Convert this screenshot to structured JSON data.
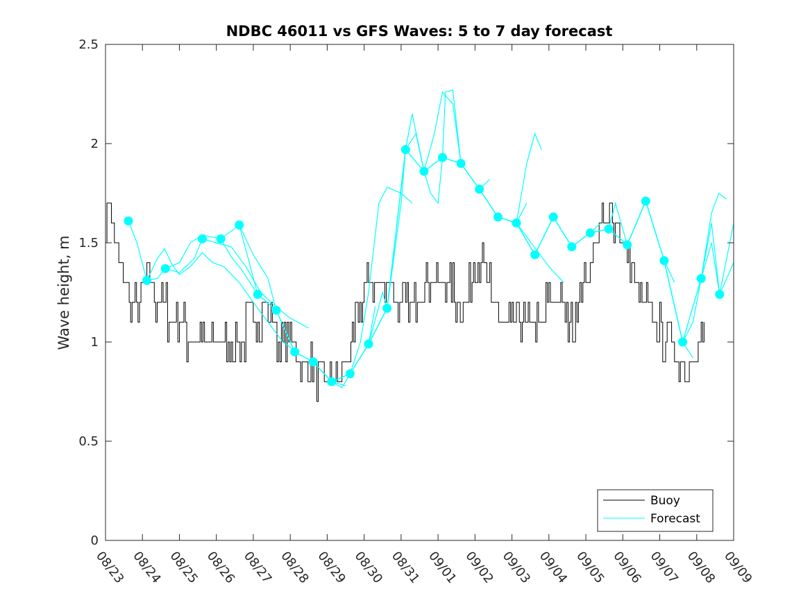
{
  "chart_data": {
    "type": "line",
    "title": "NDBC 46011 vs GFS Waves: 5 to 7 day forecast",
    "xlabel": "",
    "ylabel": "Wave height, m",
    "xlim": [
      0,
      17
    ],
    "ylim": [
      0,
      2.5
    ],
    "x_ticks": [
      "08/23",
      "08/24",
      "08/25",
      "08/26",
      "08/27",
      "08/28",
      "08/29",
      "08/30",
      "08/31",
      "09/01",
      "09/02",
      "09/03",
      "09/04",
      "09/05",
      "09/06",
      "09/07",
      "09/08",
      "09/09"
    ],
    "y_ticks": [
      "0",
      "0.5",
      "1",
      "1.5",
      "2",
      "2.5"
    ],
    "legend": {
      "position": "bottom-right",
      "entries": [
        "Buoy",
        "Forecast"
      ]
    },
    "colors": {
      "buoy": "#000000",
      "forecast": "#00FFFF",
      "axis": "#262626"
    },
    "buoy": [
      [
        0.0,
        1.6
      ],
      [
        0.1,
        1.7
      ],
      [
        0.25,
        1.5
      ],
      [
        0.4,
        1.4
      ],
      [
        0.55,
        1.3
      ],
      [
        0.7,
        1.2
      ],
      [
        0.85,
        1.2
      ],
      [
        1.0,
        1.25
      ],
      [
        1.15,
        1.3
      ],
      [
        1.3,
        1.25
      ],
      [
        1.5,
        1.2
      ],
      [
        1.65,
        1.15
      ],
      [
        1.8,
        1.1
      ],
      [
        2.0,
        1.05
      ],
      [
        2.2,
        1.05
      ],
      [
        2.4,
        1.0
      ],
      [
        2.6,
        0.98
      ],
      [
        2.8,
        0.96
      ],
      [
        3.0,
        0.96
      ],
      [
        3.2,
        0.96
      ],
      [
        3.4,
        0.97
      ],
      [
        3.6,
        1.0
      ],
      [
        3.8,
        1.05
      ],
      [
        4.0,
        1.1
      ],
      [
        4.2,
        1.15
      ],
      [
        4.4,
        1.15
      ],
      [
        4.6,
        1.05
      ],
      [
        4.8,
        1.0
      ],
      [
        5.0,
        0.98
      ],
      [
        5.2,
        0.94
      ],
      [
        5.4,
        0.92
      ],
      [
        5.6,
        0.86
      ],
      [
        5.8,
        0.83
      ],
      [
        6.0,
        0.82
      ],
      [
        6.2,
        0.83
      ],
      [
        6.4,
        0.85
      ],
      [
        6.6,
        0.9
      ],
      [
        6.7,
        1.0
      ],
      [
        6.8,
        1.1
      ],
      [
        6.9,
        1.2
      ],
      [
        7.0,
        1.28
      ],
      [
        7.2,
        1.3
      ],
      [
        7.4,
        1.32
      ],
      [
        7.6,
        1.3
      ],
      [
        7.8,
        1.25
      ],
      [
        8.0,
        1.2
      ],
      [
        8.2,
        1.22
      ],
      [
        8.4,
        1.25
      ],
      [
        8.6,
        1.3
      ],
      [
        8.8,
        1.32
      ],
      [
        9.0,
        1.3
      ],
      [
        9.2,
        1.28
      ],
      [
        9.4,
        1.25
      ],
      [
        9.6,
        1.22
      ],
      [
        9.8,
        1.25
      ],
      [
        10.0,
        1.4
      ],
      [
        10.2,
        1.45
      ],
      [
        10.3,
        1.35
      ],
      [
        10.4,
        1.25
      ],
      [
        10.6,
        1.15
      ],
      [
        10.8,
        1.1
      ],
      [
        11.0,
        1.12
      ],
      [
        11.2,
        1.15
      ],
      [
        11.4,
        1.12
      ],
      [
        11.6,
        1.1
      ],
      [
        11.8,
        1.12
      ],
      [
        12.0,
        1.18
      ],
      [
        12.2,
        1.2
      ],
      [
        12.4,
        1.15
      ],
      [
        12.6,
        1.1
      ],
      [
        12.8,
        1.2
      ],
      [
        13.0,
        1.35
      ],
      [
        13.2,
        1.5
      ],
      [
        13.4,
        1.6
      ],
      [
        13.6,
        1.65
      ],
      [
        13.7,
        1.72
      ],
      [
        13.8,
        1.6
      ],
      [
        14.0,
        1.5
      ],
      [
        14.2,
        1.4
      ],
      [
        14.4,
        1.28
      ],
      [
        14.6,
        1.2
      ],
      [
        14.8,
        1.12
      ],
      [
        15.0,
        1.05
      ],
      [
        15.2,
        1.0
      ],
      [
        15.4,
        0.95
      ],
      [
        15.6,
        0.93
      ],
      [
        15.8,
        0.94
      ],
      [
        16.0,
        0.95
      ],
      [
        16.2,
        0.95
      ]
    ],
    "forecast_runs": [
      [
        [
          0.62,
          1.61
        ],
        [
          0.85,
          1.5
        ],
        [
          1.12,
          1.31
        ],
        [
          1.4,
          1.32
        ],
        [
          1.62,
          1.37
        ],
        [
          2.0,
          1.35
        ],
        [
          2.4,
          1.42
        ],
        [
          2.62,
          1.52
        ],
        [
          3.0,
          1.5
        ],
        [
          3.4,
          1.48
        ],
        [
          3.8,
          1.38
        ],
        [
          4.2,
          1.25
        ],
        [
          4.6,
          1.18
        ],
        [
          5.0,
          1.12
        ],
        [
          5.5,
          1.07
        ]
      ],
      [
        [
          1.12,
          1.31
        ],
        [
          1.4,
          1.42
        ],
        [
          1.6,
          1.47
        ],
        [
          1.8,
          1.39
        ],
        [
          2.0,
          1.34
        ],
        [
          2.3,
          1.38
        ],
        [
          2.62,
          1.45
        ],
        [
          2.9,
          1.4
        ],
        [
          3.2,
          1.38
        ],
        [
          3.62,
          1.3
        ],
        [
          4.0,
          1.2
        ],
        [
          4.4,
          1.1
        ],
        [
          4.8,
          1.0
        ],
        [
          5.1,
          0.96
        ]
      ],
      [
        [
          1.62,
          1.37
        ],
        [
          2.0,
          1.4
        ],
        [
          2.3,
          1.5
        ],
        [
          2.62,
          1.54
        ],
        [
          3.12,
          1.52
        ],
        [
          3.4,
          1.43
        ],
        [
          3.7,
          1.36
        ],
        [
          4.12,
          1.24
        ],
        [
          4.62,
          1.16
        ],
        [
          5.12,
          0.95
        ],
        [
          5.62,
          0.9
        ],
        [
          6.12,
          0.8
        ],
        [
          6.5,
          0.78
        ]
      ],
      [
        [
          3.12,
          1.52
        ],
        [
          3.62,
          1.59
        ],
        [
          4.0,
          1.44
        ],
        [
          4.4,
          1.32
        ],
        [
          4.62,
          1.16
        ],
        [
          5.12,
          0.95
        ],
        [
          5.62,
          0.9
        ],
        [
          6.12,
          0.8
        ],
        [
          6.62,
          0.84
        ],
        [
          7.12,
          0.99
        ],
        [
          7.3,
          1.18
        ]
      ],
      [
        [
          3.62,
          1.59
        ],
        [
          4.12,
          1.24
        ],
        [
          4.62,
          1.16
        ],
        [
          5.12,
          0.95
        ],
        [
          5.62,
          0.9
        ],
        [
          6.12,
          0.8
        ],
        [
          6.62,
          0.84
        ],
        [
          6.9,
          1.0
        ],
        [
          7.12,
          1.25
        ],
        [
          7.4,
          1.7
        ],
        [
          7.62,
          1.78
        ],
        [
          8.0,
          1.75
        ],
        [
          8.3,
          1.7
        ]
      ],
      [
        [
          5.62,
          0.9
        ],
        [
          6.12,
          0.8
        ],
        [
          6.4,
          0.77
        ],
        [
          6.62,
          0.84
        ],
        [
          7.12,
          0.99
        ],
        [
          7.5,
          1.25
        ],
        [
          7.62,
          1.17
        ],
        [
          8.0,
          1.7
        ],
        [
          8.12,
          1.97
        ],
        [
          8.3,
          2.15
        ],
        [
          8.62,
          1.86
        ],
        [
          9.12,
          1.93
        ],
        [
          9.62,
          1.9
        ],
        [
          10.12,
          1.77
        ],
        [
          10.4,
          1.82
        ]
      ],
      [
        [
          6.12,
          0.8
        ],
        [
          6.62,
          0.84
        ],
        [
          7.12,
          0.99
        ],
        [
          7.62,
          1.17
        ],
        [
          8.12,
          1.97
        ],
        [
          8.4,
          2.05
        ],
        [
          8.62,
          1.86
        ],
        [
          9.12,
          1.93
        ],
        [
          9.2,
          2.26
        ],
        [
          9.4,
          2.27
        ],
        [
          9.62,
          1.9
        ],
        [
          10.12,
          1.77
        ],
        [
          10.62,
          1.63
        ],
        [
          11.12,
          1.6
        ],
        [
          11.4,
          1.7
        ]
      ],
      [
        [
          6.62,
          0.84
        ],
        [
          7.12,
          0.99
        ],
        [
          7.62,
          1.17
        ],
        [
          8.12,
          1.97
        ],
        [
          8.62,
          1.86
        ],
        [
          8.9,
          2.05
        ],
        [
          9.12,
          2.26
        ],
        [
          9.4,
          2.2
        ],
        [
          9.62,
          1.9
        ],
        [
          10.12,
          1.77
        ],
        [
          10.62,
          1.63
        ],
        [
          11.12,
          1.6
        ],
        [
          11.6,
          1.48
        ],
        [
          12.0,
          1.38
        ],
        [
          12.4,
          1.3
        ]
      ],
      [
        [
          7.12,
          0.99
        ],
        [
          7.62,
          1.17
        ],
        [
          8.12,
          1.97
        ],
        [
          8.62,
          1.86
        ],
        [
          9.12,
          1.93
        ],
        [
          9.62,
          1.9
        ],
        [
          10.12,
          1.77
        ],
        [
          10.62,
          1.63
        ],
        [
          11.12,
          1.6
        ],
        [
          11.4,
          1.9
        ],
        [
          11.62,
          2.05
        ],
        [
          11.8,
          1.97
        ]
      ],
      [
        [
          8.62,
          1.86
        ],
        [
          8.8,
          1.75
        ],
        [
          9.0,
          1.7
        ],
        [
          9.12,
          1.93
        ],
        [
          9.62,
          1.9
        ],
        [
          10.12,
          1.77
        ],
        [
          10.62,
          1.63
        ],
        [
          11.12,
          1.6
        ],
        [
          11.62,
          1.44
        ],
        [
          12.12,
          1.63
        ],
        [
          12.62,
          1.48
        ],
        [
          13.12,
          1.55
        ],
        [
          13.4,
          1.6
        ]
      ],
      [
        [
          10.12,
          1.77
        ],
        [
          10.62,
          1.63
        ],
        [
          11.12,
          1.6
        ],
        [
          11.62,
          1.44
        ],
        [
          12.12,
          1.63
        ],
        [
          12.62,
          1.48
        ],
        [
          13.12,
          1.55
        ],
        [
          13.62,
          1.57
        ],
        [
          14.12,
          1.49
        ],
        [
          14.62,
          1.71
        ],
        [
          15.12,
          1.41
        ],
        [
          15.4,
          1.3
        ]
      ],
      [
        [
          11.12,
          1.6
        ],
        [
          11.62,
          1.44
        ],
        [
          12.12,
          1.63
        ],
        [
          12.62,
          1.48
        ],
        [
          13.12,
          1.55
        ],
        [
          13.62,
          1.57
        ],
        [
          13.8,
          1.7
        ],
        [
          14.12,
          1.49
        ],
        [
          14.62,
          1.71
        ],
        [
          15.12,
          1.41
        ],
        [
          15.62,
          1.0
        ],
        [
          15.9,
          0.92
        ]
      ],
      [
        [
          12.62,
          1.48
        ],
        [
          13.12,
          1.55
        ],
        [
          13.62,
          1.57
        ],
        [
          14.12,
          1.49
        ],
        [
          14.62,
          1.71
        ],
        [
          15.12,
          1.41
        ],
        [
          15.62,
          1.0
        ],
        [
          16.12,
          1.32
        ],
        [
          16.4,
          1.6
        ],
        [
          16.62,
          1.24
        ],
        [
          17.0,
          1.4
        ]
      ],
      [
        [
          13.62,
          1.57
        ],
        [
          14.12,
          1.49
        ],
        [
          14.62,
          1.71
        ],
        [
          15.12,
          1.41
        ],
        [
          15.62,
          1.0
        ],
        [
          16.12,
          1.32
        ],
        [
          16.4,
          1.5
        ],
        [
          16.62,
          1.24
        ],
        [
          17.0,
          1.6
        ]
      ],
      [
        [
          15.12,
          1.41
        ],
        [
          15.62,
          1.0
        ],
        [
          15.9,
          1.1
        ],
        [
          16.12,
          1.32
        ],
        [
          16.4,
          1.65
        ],
        [
          16.6,
          1.75
        ],
        [
          16.8,
          1.72
        ]
      ]
    ],
    "analysis_points": [
      [
        0.62,
        1.61
      ],
      [
        1.12,
        1.31
      ],
      [
        1.62,
        1.37
      ],
      [
        2.62,
        1.52
      ],
      [
        3.12,
        1.52
      ],
      [
        3.62,
        1.59
      ],
      [
        4.12,
        1.24
      ],
      [
        4.62,
        1.16
      ],
      [
        5.12,
        0.95
      ],
      [
        5.62,
        0.9
      ],
      [
        6.12,
        0.8
      ],
      [
        6.62,
        0.84
      ],
      [
        7.12,
        0.99
      ],
      [
        7.62,
        1.17
      ],
      [
        8.12,
        1.97
      ],
      [
        8.62,
        1.86
      ],
      [
        9.12,
        1.93
      ],
      [
        9.62,
        1.9
      ],
      [
        10.12,
        1.77
      ],
      [
        10.62,
        1.63
      ],
      [
        11.12,
        1.6
      ],
      [
        11.62,
        1.44
      ],
      [
        12.12,
        1.63
      ],
      [
        12.62,
        1.48
      ],
      [
        13.12,
        1.55
      ],
      [
        13.62,
        1.57
      ],
      [
        14.12,
        1.49
      ],
      [
        14.62,
        1.71
      ],
      [
        15.12,
        1.41
      ],
      [
        15.62,
        1.0
      ],
      [
        16.12,
        1.32
      ],
      [
        16.62,
        1.24
      ]
    ]
  }
}
